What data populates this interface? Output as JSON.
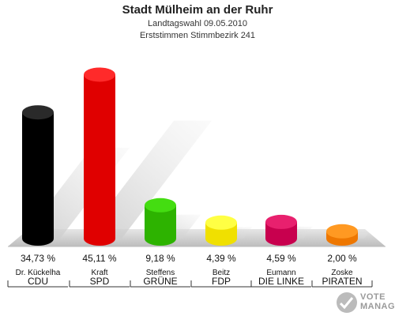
{
  "chart_data": {
    "type": "bar",
    "title": "Stadt Mülheim an der Ruhr",
    "subtitle_lines": [
      "Landtagswahl 09.05.2010",
      "Erststimmen Stimmbezirk 241"
    ],
    "unit": "%",
    "ylim": [
      0,
      50
    ],
    "grid": false,
    "bars": [
      {
        "candidate": "Dr. Kückelha",
        "party": "CDU",
        "value": 34.73,
        "label": "34,73 %",
        "color": "#000000",
        "top_color": "#2a2a2a"
      },
      {
        "candidate": "Kraft",
        "party": "SPD",
        "value": 45.11,
        "label": "45,11 %",
        "color": "#e00000",
        "top_color": "#ff2a2a"
      },
      {
        "candidate": "Steffens",
        "party": "GRÜNE",
        "value": 9.18,
        "label": "9,18 %",
        "color": "#2db300",
        "top_color": "#44dd11"
      },
      {
        "candidate": "Beitz",
        "party": "FDP",
        "value": 4.39,
        "label": "4,39 %",
        "color": "#f0e000",
        "top_color": "#ffff44"
      },
      {
        "candidate": "Eumann",
        "party": "DIE LINKE",
        "value": 4.59,
        "label": "4,59 %",
        "color": "#c8004e",
        "top_color": "#e8206e"
      },
      {
        "candidate": "Zoske",
        "party": "PIRATEN",
        "value": 2.0,
        "label": "2,00 %",
        "color": "#ee7700",
        "top_color": "#ff9922"
      }
    ]
  },
  "logo": {
    "line1": "VOTE",
    "line2": "MANAGER"
  }
}
